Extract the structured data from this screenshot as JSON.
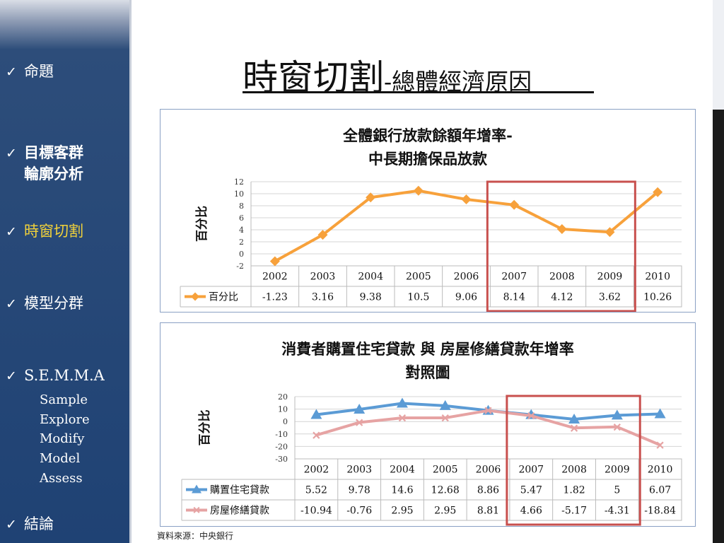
{
  "sidebar": {
    "items": [
      {
        "label": "命題"
      },
      {
        "label_line1": "目標客群",
        "label_line2": "輪廓分析"
      },
      {
        "label": "時窗切割"
      },
      {
        "label": "模型分群"
      },
      {
        "label": "S.E.M.M.A"
      },
      {
        "label": "結論"
      }
    ],
    "semma_sub": [
      "Sample",
      "Explore",
      "Modify",
      "Model",
      "Assess"
    ],
    "check_glyph": "✓",
    "active_color": "#f2d23a"
  },
  "header": {
    "title_main": "時窗切割",
    "title_sub": "-總體經濟原因"
  },
  "source_note": "資料來源：中央銀行",
  "chart_data": [
    {
      "type": "line",
      "title_line1": "全體銀行放款餘額年增率-",
      "title_line2": "中長期擔保品放款",
      "ylabel": "百分比",
      "ylim": [
        -2,
        12
      ],
      "yticks": [
        "12",
        "10",
        "8",
        "6",
        "4",
        "2",
        "0",
        "-2"
      ],
      "categories": [
        "2002",
        "2003",
        "2004",
        "2005",
        "2006",
        "2007",
        "2008",
        "2009",
        "2010"
      ],
      "series": [
        {
          "name": "百分比",
          "color": "#f7a13b",
          "values": [
            -1.23,
            3.16,
            9.38,
            10.5,
            9.06,
            8.14,
            4.12,
            3.62,
            10.26
          ],
          "value_labels": [
            "-1.23",
            "3.16",
            "9.38",
            "10.5",
            "9.06",
            "8.14",
            "4.12",
            "3.62",
            "10.26"
          ]
        }
      ],
      "highlight": {
        "from": "2007",
        "to": "2009",
        "color": "#c8504e"
      },
      "data_table": true,
      "grid": true
    },
    {
      "type": "line",
      "title_line1": "消費者購置住宅貸款 與 房屋修繕貸款年增率",
      "title_line2": "對照圖",
      "ylabel": "百分比",
      "ylim": [
        -30,
        20
      ],
      "yticks": [
        "20",
        "10",
        "0",
        "-10",
        "-20",
        "-30"
      ],
      "categories": [
        "2002",
        "2003",
        "2004",
        "2005",
        "2006",
        "2007",
        "2008",
        "2009",
        "2010"
      ],
      "series": [
        {
          "name": "購置住宅貸款",
          "color": "#5b9bd5",
          "values": [
            5.52,
            9.78,
            14.6,
            12.68,
            8.86,
            5.47,
            1.82,
            5,
            6.07
          ],
          "value_labels": [
            "5.52",
            "9.78",
            "14.6",
            "12.68",
            "8.86",
            "5.47",
            "1.82",
            "5",
            "6.07"
          ]
        },
        {
          "name": "房屋修繕貸款",
          "color": "#e6a3a3",
          "values": [
            -10.94,
            -0.76,
            2.95,
            2.95,
            8.81,
            4.66,
            -5.17,
            -4.31,
            -18.84
          ],
          "value_labels": [
            "-10.94",
            "-0.76",
            "2.95",
            "2.95",
            "8.81",
            "4.66",
            "-5.17",
            "-4.31",
            "-18.84"
          ]
        }
      ],
      "highlight": {
        "from": "2007",
        "to": "2009",
        "color": "#c8504e"
      },
      "data_table": true,
      "grid": true
    }
  ]
}
